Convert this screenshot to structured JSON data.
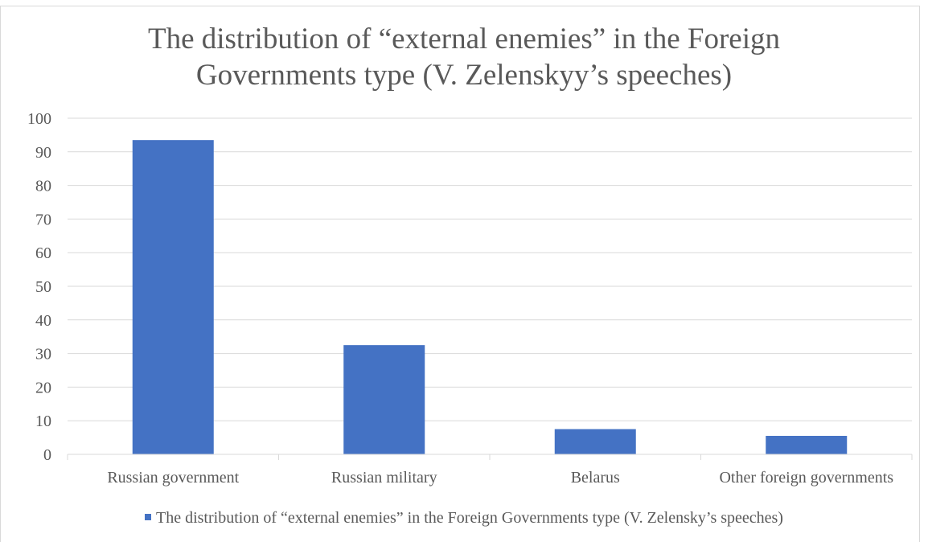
{
  "chart_data": {
    "type": "bar",
    "title_lines": [
      "The distribution of “external enemies” in the Foreign",
      "Governments type (V. Zelenskyy’s speeches)"
    ],
    "categories": [
      "Russian government",
      "Russian military",
      "Belarus",
      "Other foreign governments"
    ],
    "series": [
      {
        "name": "The distribution of “external enemies” in the Foreign Governments type (V. Zelenskys speeches)",
        "legend_label": "The distribution of “external enemies” in the Foreign Governments type (V. Zelensky’s speeches)",
        "values": [
          93.5,
          32.5,
          7.5,
          5.5
        ],
        "color": "#4472c4"
      }
    ],
    "ylim": [
      0,
      100
    ],
    "yticks": [
      "0",
      "10",
      "20",
      "30",
      "40",
      "50",
      "60",
      "70",
      "80",
      "90",
      "100"
    ],
    "grid": true,
    "legend_position": "bottom",
    "xlabel": "",
    "ylabel": ""
  },
  "colors": {
    "bar": "#4472c4",
    "grid": "#d9d9d9",
    "text": "#595959"
  }
}
